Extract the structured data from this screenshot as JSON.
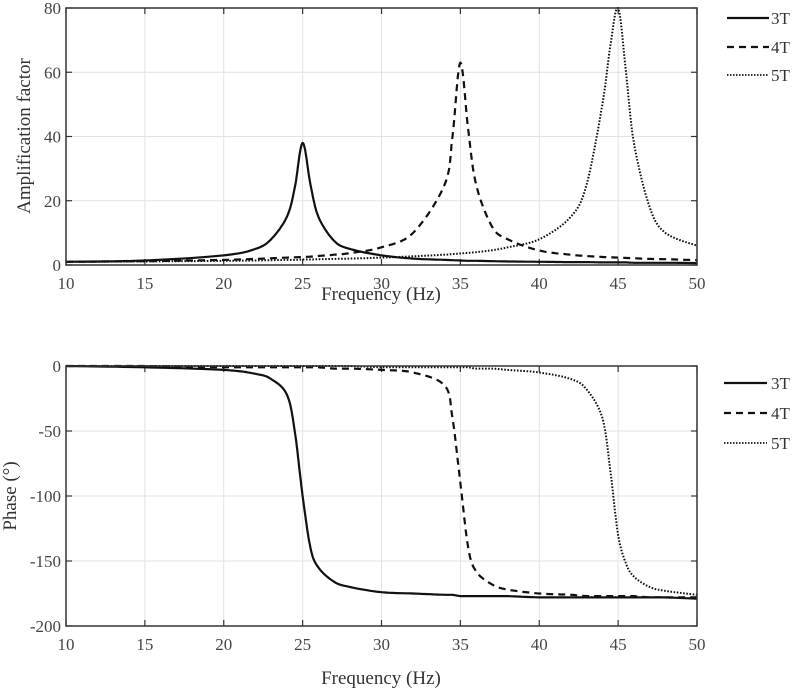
{
  "chart_data": [
    {
      "type": "line",
      "title": "",
      "xlabel": "Frequency (Hz)",
      "ylabel": "Amplification factor",
      "xlim": [
        10,
        50
      ],
      "ylim": [
        0,
        80
      ],
      "xticks": [
        10,
        15,
        20,
        25,
        30,
        35,
        40,
        45,
        50
      ],
      "yticks": [
        0,
        20,
        40,
        60,
        80
      ],
      "grid": true,
      "legend_position": "outside-right-top",
      "x": [
        10,
        15,
        20,
        22,
        23,
        24,
        24.5,
        25,
        25.5,
        26,
        27,
        28,
        30,
        32,
        34,
        34.5,
        35,
        35.5,
        36,
        37,
        38,
        40,
        42,
        43,
        44,
        44.5,
        45,
        45.5,
        46,
        47,
        48,
        50
      ],
      "series": [
        {
          "name": "3T",
          "style": "solid",
          "values": [
            1.0,
            1.4,
            3.0,
            5.0,
            8.0,
            15.0,
            24.0,
            38.0,
            25.0,
            15.0,
            7.5,
            5.0,
            3.0,
            2.0,
            1.6,
            1.5,
            1.4,
            1.3,
            1.3,
            1.2,
            1.1,
            1.0,
            0.9,
            0.9,
            0.8,
            0.8,
            0.8,
            0.8,
            0.7,
            0.7,
            0.7,
            0.6
          ]
        },
        {
          "name": "4T",
          "style": "dashed",
          "values": [
            1.0,
            1.2,
            1.6,
            1.9,
            2.1,
            2.3,
            2.4,
            2.5,
            2.6,
            2.8,
            3.2,
            3.7,
            5.5,
            10.0,
            25.0,
            40.0,
            63.0,
            42.0,
            25.0,
            12.0,
            8.0,
            4.5,
            3.2,
            2.8,
            2.5,
            2.4,
            2.3,
            2.2,
            2.1,
            1.9,
            1.8,
            1.5
          ]
        },
        {
          "name": "5T",
          "style": "dotted",
          "values": [
            1.0,
            1.1,
            1.3,
            1.4,
            1.5,
            1.6,
            1.6,
            1.7,
            1.7,
            1.8,
            1.9,
            2.0,
            2.3,
            2.7,
            3.2,
            3.4,
            3.6,
            3.8,
            4.0,
            4.6,
            5.5,
            8.0,
            15.0,
            25.0,
            50.0,
            68.0,
            80.0,
            60.0,
            38.0,
            18.0,
            10.0,
            6.0
          ]
        }
      ]
    },
    {
      "type": "line",
      "title": "",
      "xlabel": "Frequency (Hz)",
      "ylabel": "Phase (°)",
      "xlim": [
        10,
        50
      ],
      "ylim": [
        -200,
        0
      ],
      "xticks": [
        10,
        15,
        20,
        25,
        30,
        35,
        40,
        45,
        50
      ],
      "yticks": [
        0,
        -50,
        -100,
        -150,
        -200
      ],
      "grid": true,
      "legend_position": "outside-right-top",
      "x": [
        10,
        15,
        20,
        22,
        23,
        24,
        24.5,
        25,
        25.5,
        26,
        27,
        28,
        30,
        32,
        34,
        34.5,
        35,
        35.5,
        36,
        37,
        38,
        40,
        42,
        43,
        44,
        44.5,
        45,
        45.5,
        46,
        47,
        48,
        50
      ],
      "series": [
        {
          "name": "3T",
          "style": "solid",
          "values": [
            0,
            -1,
            -3,
            -6,
            -10,
            -22,
            -50,
            -100,
            -140,
            -155,
            -166,
            -170,
            -174,
            -175,
            -176,
            -176,
            -177,
            -177,
            -177,
            -177,
            -177,
            -178,
            -178,
            -178,
            -178,
            -178,
            -178,
            -178,
            -178,
            -178,
            -178,
            -179
          ]
        },
        {
          "name": "4T",
          "style": "dashed",
          "values": [
            0,
            0,
            -1,
            -1,
            -1,
            -1,
            -1,
            -1,
            -1,
            -1,
            -2,
            -2,
            -3,
            -5,
            -15,
            -40,
            -90,
            -140,
            -158,
            -168,
            -172,
            -175,
            -176,
            -177,
            -177,
            -177,
            -177,
            -177,
            -177,
            -178,
            -178,
            -178
          ]
        },
        {
          "name": "5T",
          "style": "dotted",
          "values": [
            0,
            0,
            0,
            0,
            0,
            0,
            0,
            0,
            0,
            0,
            0,
            0,
            -1,
            -1,
            -1,
            -1,
            -1,
            -1,
            -2,
            -2,
            -3,
            -5,
            -10,
            -18,
            -40,
            -80,
            -130,
            -152,
            -162,
            -170,
            -173,
            -176
          ]
        }
      ]
    }
  ],
  "legend": [
    {
      "label": "3T",
      "style": "solid"
    },
    {
      "label": "4T",
      "style": "dashed"
    },
    {
      "label": "5T",
      "style": "dotted"
    }
  ],
  "top": {
    "ylabel": "Amplification factor",
    "xlabel": "Frequency (Hz)",
    "yticks": [
      "0",
      "20",
      "40",
      "60",
      "80"
    ],
    "xticks": [
      "10",
      "15",
      "20",
      "25",
      "30",
      "35",
      "40",
      "45",
      "50"
    ]
  },
  "bottom": {
    "ylabel": "Phase (°)",
    "xlabel": "Frequency (Hz)",
    "yticks": [
      "0",
      "-50",
      "-100",
      "-150",
      "-200"
    ],
    "xticks": [
      "10",
      "15",
      "20",
      "25",
      "30",
      "35",
      "40",
      "45",
      "50"
    ]
  }
}
